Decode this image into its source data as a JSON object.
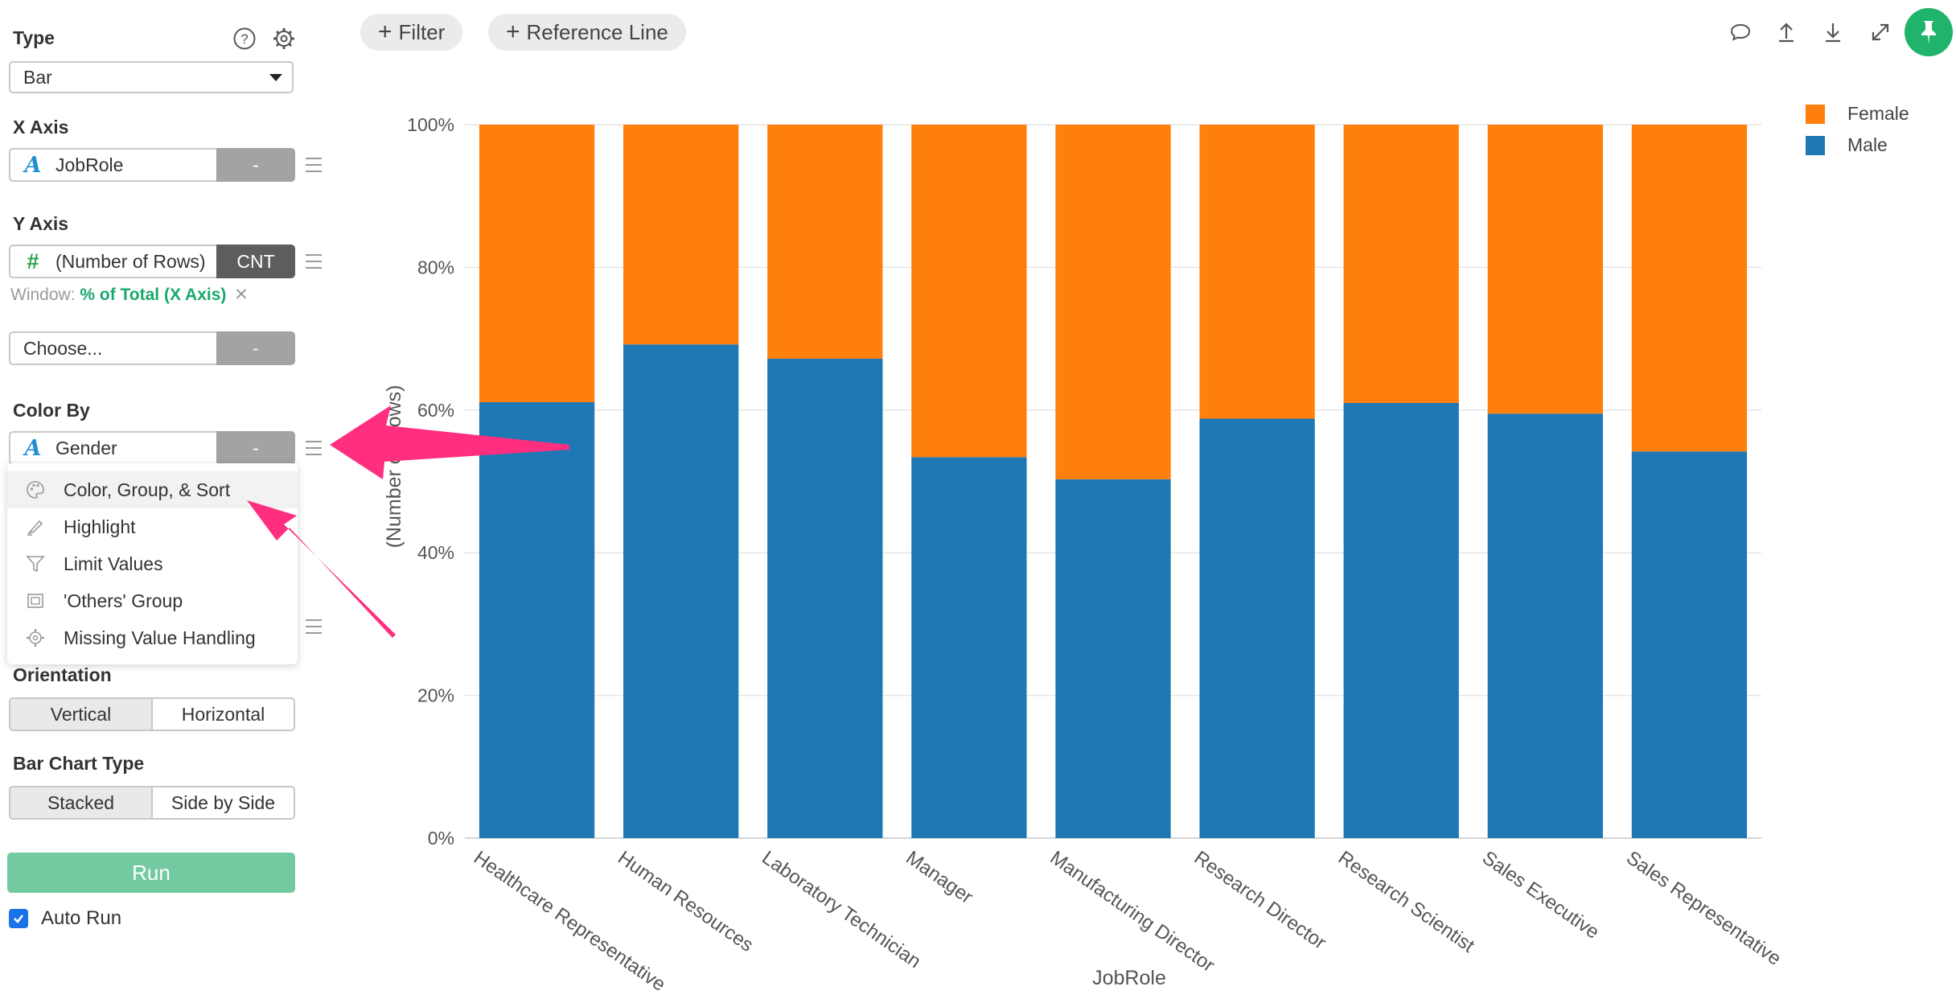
{
  "panel": {
    "type": {
      "label": "Type",
      "value": "Bar"
    },
    "x_axis": {
      "label": "X Axis",
      "field": "JobRole",
      "agg": "-"
    },
    "y_axis": {
      "label": "Y Axis",
      "field": "(Number of Rows)",
      "agg": "CNT",
      "window_label": "Window:",
      "window_value": "% of Total (X Axis)"
    },
    "extra": {
      "field": "Choose...",
      "agg": "-"
    },
    "color_by": {
      "label": "Color By",
      "field": "Gender",
      "agg": "-"
    },
    "menu": [
      {
        "icon": "palette-icon",
        "label": "Color, Group, & Sort"
      },
      {
        "icon": "highlight-icon",
        "label": "Highlight"
      },
      {
        "icon": "filter-icon",
        "label": "Limit Values"
      },
      {
        "icon": "others-group-icon",
        "label": "'Others' Group"
      },
      {
        "icon": "gear-icon",
        "label": "Missing Value Handling"
      }
    ],
    "orientation": {
      "label": "Orientation",
      "options": [
        "Vertical",
        "Horizontal"
      ],
      "selected": "Vertical"
    },
    "bar_chart_type": {
      "label": "Bar Chart Type",
      "options": [
        "Stacked",
        "Side by Side"
      ],
      "selected": "Stacked"
    },
    "run": "Run",
    "auto_run": {
      "label": "Auto Run",
      "checked": true
    }
  },
  "toolbar": {
    "filter": "Filter",
    "reference_line": "Reference Line"
  },
  "colors": {
    "female": "#ff7f0e",
    "male": "#1f77b4",
    "accent": "#1fb36b",
    "annotation_arrow": "#ff2e7e"
  },
  "chart_data": {
    "type": "bar",
    "stacked": true,
    "categories": [
      "Healthcare Representative",
      "Human Resources",
      "Laboratory Technician",
      "Manager",
      "Manufacturing Director",
      "Research Director",
      "Research Scientist",
      "Sales Executive",
      "Sales Representative"
    ],
    "series": [
      {
        "name": "Male",
        "color": "#1f77b4",
        "values": [
          61.1,
          69.2,
          67.2,
          53.4,
          50.3,
          58.8,
          61.0,
          59.5,
          54.2
        ]
      },
      {
        "name": "Female",
        "color": "#ff7f0e",
        "values": [
          38.9,
          30.8,
          32.8,
          46.6,
          49.7,
          41.2,
          39.0,
          40.5,
          45.8
        ]
      }
    ],
    "xlabel": "JobRole",
    "ylabel": "(Number of Rows)",
    "yticks": [
      "0%",
      "20%",
      "40%",
      "60%",
      "80%",
      "100%"
    ],
    "ylim": [
      0,
      100
    ],
    "grid": true,
    "legend": {
      "position": "top-right",
      "entries": [
        "Female",
        "Male"
      ]
    }
  }
}
